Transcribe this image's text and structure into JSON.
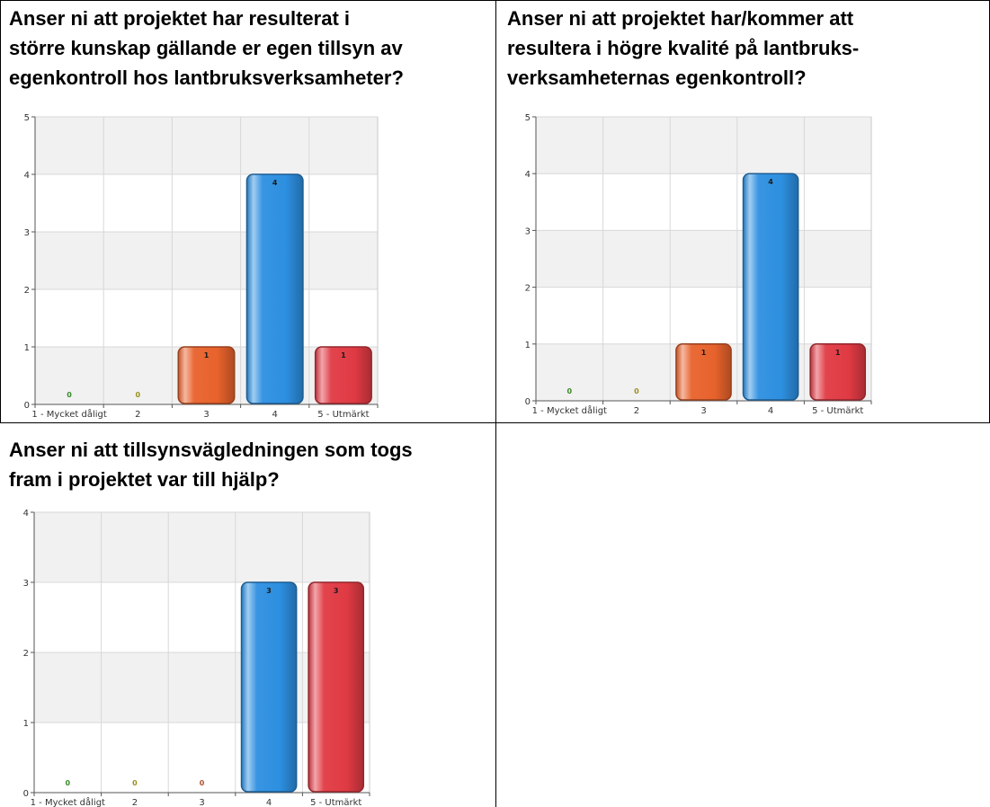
{
  "chart_data": [
    {
      "type": "bar",
      "title_lines": [
        "Anser ni att projektet har resulterat i",
        "större kunskap gällande er egen tillsyn av",
        "egenkontroll hos lantbruksverksamheter?"
      ],
      "categories": [
        "1 - Mycket dåligt",
        "2",
        "3",
        "4",
        "5 - Utmärkt"
      ],
      "values": [
        0,
        0,
        1,
        4,
        1
      ],
      "value_labels": [
        "0",
        "0",
        "1",
        "4",
        "1"
      ],
      "yticks": [
        "0",
        "1",
        "2",
        "3",
        "4",
        "5"
      ],
      "ylim": [
        0,
        5
      ],
      "grid": true
    },
    {
      "type": "bar",
      "title_lines": [
        "Anser ni att projektet har/kommer att",
        "resultera i högre kvalité på lantbruks-",
        "verksamheternas egenkontroll?"
      ],
      "categories": [
        "1 - Mycket dåligt",
        "2",
        "3",
        "4",
        "5 - Utmärkt"
      ],
      "values": [
        0,
        0,
        1,
        4,
        1
      ],
      "value_labels": [
        "0",
        "0",
        "1",
        "4",
        "1"
      ],
      "yticks": [
        "0",
        "1",
        "2",
        "3",
        "4",
        "5"
      ],
      "ylim": [
        0,
        5
      ],
      "grid": true
    },
    {
      "type": "bar",
      "title_lines": [
        "Anser ni att tillsynsvägledningen som togs",
        "fram i projektet var till hjälp?"
      ],
      "categories": [
        "1 - Mycket dåligt",
        "2",
        "3",
        "4",
        "5 - Utmärkt"
      ],
      "values": [
        0,
        0,
        0,
        3,
        3
      ],
      "value_labels": [
        "0",
        "0",
        "0",
        "3",
        "3"
      ],
      "yticks": [
        "0",
        "1",
        "2",
        "3",
        "4"
      ],
      "ylim": [
        0,
        4
      ],
      "grid": true
    }
  ],
  "colors": {
    "bar_colors": [
      "#5aa832",
      "#a8a020",
      "#e8622c",
      "#2d8fe0",
      "#e03a44"
    ],
    "zero_label_colors": [
      "#3a8a2a",
      "#9a9020",
      "#b05030",
      "#2d6fc0",
      "#b03040"
    ]
  }
}
